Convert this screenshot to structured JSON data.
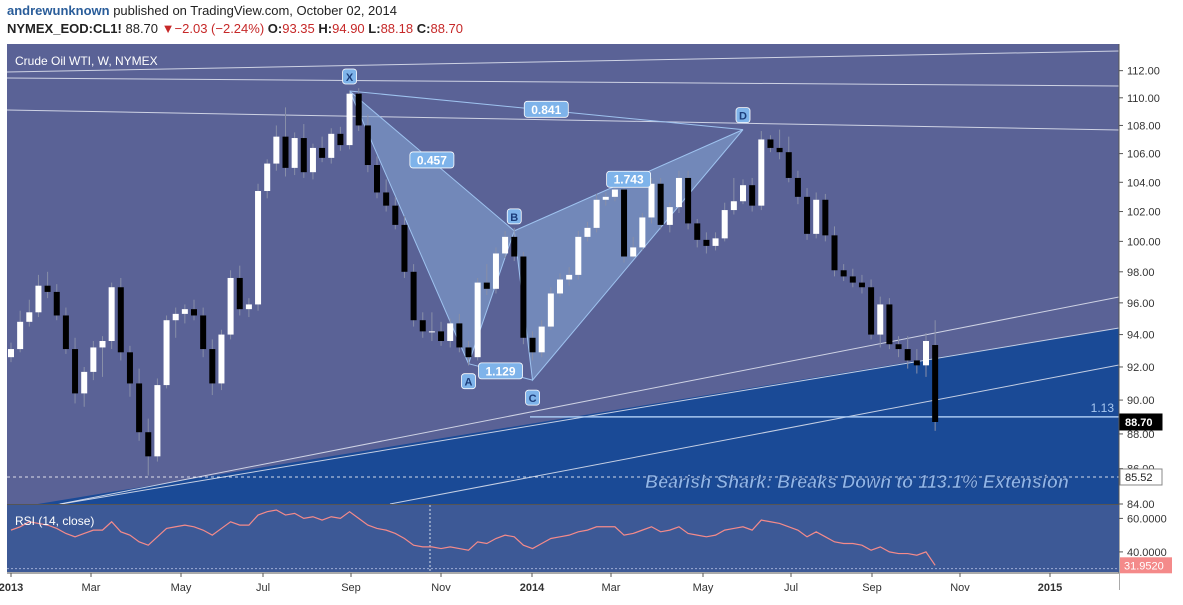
{
  "header": {
    "author": "andrewunknown",
    "published": "published on TradingView.com, October 02, 2014",
    "symbol": "NYMEX_EOD:CL1!",
    "last": "88.70",
    "change": "−2.03 (−2.24%)",
    "open_label": "O:",
    "open": "93.35",
    "high_label": "H:",
    "high": "94.90",
    "low_label": "L:",
    "low": "88.18",
    "close_label": "C:",
    "close": "88.70"
  },
  "chart_data": [
    {
      "type": "candlestick",
      "title": "Crude Oil WTI, W, NYMEX",
      "colors": {
        "background": "#5a6296",
        "up_candle": "#ffffff",
        "down_candle": "#000000",
        "channel_fill": "#1a4a96",
        "pattern_fill": "#7f9ccd",
        "pattern_line": "#9ec2ef",
        "trendline": "#e3e6f2"
      },
      "y_scale": "log",
      "y_range": [
        84.0,
        114.0
      ],
      "y_ticks": [
        "84.00",
        "86.00",
        "88.00",
        "90.00",
        "92.00",
        "94.00",
        "96.00",
        "98.00",
        "100.00",
        "102.00",
        "104.00",
        "106.00",
        "108.00",
        "110.00",
        "112.00"
      ],
      "x_ticks": [
        "2013",
        "Mar",
        "May",
        "Jul",
        "Sep",
        "Nov",
        "2014",
        "Mar",
        "May",
        "Jul",
        "Sep",
        "Nov",
        "2015"
      ],
      "price_labels": [
        {
          "value": 88.7,
          "text": "88.70",
          "style": "last"
        },
        {
          "value": 85.52,
          "text": "85.52",
          "style": "level"
        }
      ],
      "horizontal_line": {
        "value": 89.0,
        "label": "1.13"
      },
      "harmonic_pattern": {
        "name": "Bearish Shark",
        "points": [
          {
            "label": "X",
            "week": 37,
            "price": 110.5
          },
          {
            "label": "A",
            "week": 50,
            "price": 92.2
          },
          {
            "label": "B",
            "week": 55,
            "price": 100.7
          },
          {
            "label": "C",
            "week": 57,
            "price": 91.2
          },
          {
            "label": "D",
            "week": 80,
            "price": 107.7
          }
        ],
        "ratios": [
          "0.457",
          "0.841",
          "1.743",
          "1.129"
        ]
      },
      "annotation": "Bearish Shark: Breaks Down to 113.1% Extension",
      "candles": [
        {
          "o": 92.6,
          "h": 93.5,
          "l": 92.3,
          "c": 93.1
        },
        {
          "o": 93.1,
          "h": 95.5,
          "l": 92.9,
          "c": 94.8
        },
        {
          "o": 94.8,
          "h": 96.2,
          "l": 94.5,
          "c": 95.4
        },
        {
          "o": 95.4,
          "h": 97.8,
          "l": 95.1,
          "c": 97.1
        },
        {
          "o": 97.1,
          "h": 98.0,
          "l": 96.3,
          "c": 96.7
        },
        {
          "o": 96.7,
          "h": 97.2,
          "l": 94.9,
          "c": 95.2
        },
        {
          "o": 95.2,
          "h": 95.7,
          "l": 92.8,
          "c": 93.1
        },
        {
          "o": 93.1,
          "h": 93.8,
          "l": 89.8,
          "c": 90.4
        },
        {
          "o": 90.4,
          "h": 92.0,
          "l": 89.6,
          "c": 91.7
        },
        {
          "o": 91.7,
          "h": 93.6,
          "l": 91.2,
          "c": 93.2
        },
        {
          "o": 93.2,
          "h": 93.9,
          "l": 91.4,
          "c": 93.6
        },
        {
          "o": 93.6,
          "h": 97.3,
          "l": 93.1,
          "c": 97.0
        },
        {
          "o": 97.0,
          "h": 97.6,
          "l": 92.4,
          "c": 92.9
        },
        {
          "o": 92.9,
          "h": 93.3,
          "l": 90.2,
          "c": 91.0
        },
        {
          "o": 91.0,
          "h": 91.9,
          "l": 87.6,
          "c": 88.1
        },
        {
          "o": 88.1,
          "h": 88.9,
          "l": 85.6,
          "c": 86.7
        },
        {
          "o": 86.7,
          "h": 91.3,
          "l": 86.4,
          "c": 90.9
        },
        {
          "o": 90.9,
          "h": 95.2,
          "l": 90.7,
          "c": 94.9
        },
        {
          "o": 94.9,
          "h": 95.7,
          "l": 93.8,
          "c": 95.3
        },
        {
          "o": 95.3,
          "h": 95.9,
          "l": 94.7,
          "c": 95.6
        },
        {
          "o": 95.6,
          "h": 96.2,
          "l": 94.9,
          "c": 95.2
        },
        {
          "o": 95.2,
          "h": 95.7,
          "l": 92.6,
          "c": 93.1
        },
        {
          "o": 93.1,
          "h": 93.7,
          "l": 90.3,
          "c": 91.0
        },
        {
          "o": 91.0,
          "h": 94.3,
          "l": 90.6,
          "c": 94.0
        },
        {
          "o": 94.0,
          "h": 98.1,
          "l": 93.7,
          "c": 97.6
        },
        {
          "o": 97.6,
          "h": 98.4,
          "l": 95.2,
          "c": 95.6
        },
        {
          "o": 95.6,
          "h": 96.3,
          "l": 95.1,
          "c": 95.9
        },
        {
          "o": 95.9,
          "h": 103.9,
          "l": 95.5,
          "c": 103.4
        },
        {
          "o": 103.4,
          "h": 105.6,
          "l": 102.9,
          "c": 105.3
        },
        {
          "o": 105.3,
          "h": 108.0,
          "l": 104.8,
          "c": 107.2
        },
        {
          "o": 107.2,
          "h": 109.3,
          "l": 104.4,
          "c": 105.0
        },
        {
          "o": 105.0,
          "h": 107.5,
          "l": 104.5,
          "c": 107.1
        },
        {
          "o": 107.1,
          "h": 108.1,
          "l": 104.3,
          "c": 104.7
        },
        {
          "o": 104.7,
          "h": 106.7,
          "l": 104.2,
          "c": 106.4
        },
        {
          "o": 106.4,
          "h": 107.2,
          "l": 105.4,
          "c": 105.7
        },
        {
          "o": 105.7,
          "h": 107.8,
          "l": 105.3,
          "c": 107.4
        },
        {
          "o": 107.4,
          "h": 107.9,
          "l": 106.2,
          "c": 106.6
        },
        {
          "o": 106.6,
          "h": 110.5,
          "l": 106.3,
          "c": 110.3
        },
        {
          "o": 110.3,
          "h": 110.7,
          "l": 107.6,
          "c": 108.0
        },
        {
          "o": 108.0,
          "h": 108.8,
          "l": 104.7,
          "c": 105.2
        },
        {
          "o": 105.2,
          "h": 105.8,
          "l": 102.9,
          "c": 103.3
        },
        {
          "o": 103.3,
          "h": 104.2,
          "l": 102.0,
          "c": 102.4
        },
        {
          "o": 102.4,
          "h": 103.0,
          "l": 100.8,
          "c": 101.1
        },
        {
          "o": 101.1,
          "h": 101.7,
          "l": 97.6,
          "c": 98.0
        },
        {
          "o": 98.0,
          "h": 98.5,
          "l": 94.5,
          "c": 94.9
        },
        {
          "o": 94.9,
          "h": 95.4,
          "l": 93.8,
          "c": 94.2
        },
        {
          "o": 94.2,
          "h": 95.4,
          "l": 93.6,
          "c": 94.2
        },
        {
          "o": 94.2,
          "h": 94.8,
          "l": 93.3,
          "c": 93.6
        },
        {
          "o": 93.6,
          "h": 95.0,
          "l": 93.2,
          "c": 94.7
        },
        {
          "o": 94.7,
          "h": 95.3,
          "l": 92.9,
          "c": 93.2
        },
        {
          "o": 93.2,
          "h": 93.6,
          "l": 92.1,
          "c": 92.6
        },
        {
          "o": 92.6,
          "h": 97.6,
          "l": 92.4,
          "c": 97.3
        },
        {
          "o": 97.3,
          "h": 98.5,
          "l": 96.5,
          "c": 96.9
        },
        {
          "o": 96.9,
          "h": 99.6,
          "l": 96.6,
          "c": 99.2
        },
        {
          "o": 99.2,
          "h": 100.7,
          "l": 98.9,
          "c": 100.3
        },
        {
          "o": 100.3,
          "h": 100.9,
          "l": 98.7,
          "c": 99.0
        },
        {
          "o": 99.0,
          "h": 99.3,
          "l": 93.4,
          "c": 93.8
        },
        {
          "o": 93.8,
          "h": 94.2,
          "l": 92.4,
          "c": 92.9
        },
        {
          "o": 92.9,
          "h": 94.9,
          "l": 92.6,
          "c": 94.5
        },
        {
          "o": 94.5,
          "h": 97.0,
          "l": 94.3,
          "c": 96.6
        },
        {
          "o": 96.6,
          "h": 97.9,
          "l": 96.4,
          "c": 97.5
        },
        {
          "o": 97.5,
          "h": 98.3,
          "l": 97.1,
          "c": 97.8
        },
        {
          "o": 97.8,
          "h": 100.7,
          "l": 97.5,
          "c": 100.3
        },
        {
          "o": 100.3,
          "h": 101.3,
          "l": 100.0,
          "c": 100.9
        },
        {
          "o": 100.9,
          "h": 103.2,
          "l": 100.6,
          "c": 102.8
        },
        {
          "o": 102.8,
          "h": 103.3,
          "l": 102.4,
          "c": 103.0
        },
        {
          "o": 103.0,
          "h": 104.2,
          "l": 102.7,
          "c": 103.5
        },
        {
          "o": 103.5,
          "h": 104.2,
          "l": 98.6,
          "c": 99.0
        },
        {
          "o": 99.0,
          "h": 100.3,
          "l": 98.9,
          "c": 99.6
        },
        {
          "o": 99.6,
          "h": 101.9,
          "l": 99.4,
          "c": 101.6
        },
        {
          "o": 101.6,
          "h": 104.3,
          "l": 101.2,
          "c": 103.9
        },
        {
          "o": 103.9,
          "h": 104.3,
          "l": 100.8,
          "c": 101.1
        },
        {
          "o": 101.1,
          "h": 102.6,
          "l": 100.6,
          "c": 102.3
        },
        {
          "o": 102.3,
          "h": 104.8,
          "l": 101.9,
          "c": 104.3
        },
        {
          "o": 104.3,
          "h": 104.8,
          "l": 100.8,
          "c": 101.2
        },
        {
          "o": 101.2,
          "h": 101.5,
          "l": 99.6,
          "c": 100.1
        },
        {
          "o": 100.1,
          "h": 100.6,
          "l": 99.2,
          "c": 99.7
        },
        {
          "o": 99.7,
          "h": 100.6,
          "l": 99.4,
          "c": 100.2
        },
        {
          "o": 100.2,
          "h": 102.6,
          "l": 100.0,
          "c": 102.1
        },
        {
          "o": 102.1,
          "h": 104.3,
          "l": 101.8,
          "c": 102.7
        },
        {
          "o": 102.7,
          "h": 104.2,
          "l": 102.5,
          "c": 103.8
        },
        {
          "o": 103.8,
          "h": 104.3,
          "l": 102.0,
          "c": 102.4
        },
        {
          "o": 102.4,
          "h": 107.6,
          "l": 102.1,
          "c": 107.0
        },
        {
          "o": 107.0,
          "h": 107.3,
          "l": 106.1,
          "c": 106.4
        },
        {
          "o": 106.4,
          "h": 107.7,
          "l": 105.6,
          "c": 106.1
        },
        {
          "o": 106.1,
          "h": 107.2,
          "l": 104.0,
          "c": 104.3
        },
        {
          "o": 104.3,
          "h": 104.8,
          "l": 102.5,
          "c": 103.0
        },
        {
          "o": 103.0,
          "h": 103.6,
          "l": 100.1,
          "c": 100.5
        },
        {
          "o": 100.5,
          "h": 103.3,
          "l": 100.2,
          "c": 102.8
        },
        {
          "o": 102.8,
          "h": 103.2,
          "l": 100.0,
          "c": 100.4
        },
        {
          "o": 100.4,
          "h": 101.0,
          "l": 97.7,
          "c": 98.1
        },
        {
          "o": 98.1,
          "h": 98.5,
          "l": 97.4,
          "c": 97.7
        },
        {
          "o": 97.7,
          "h": 98.2,
          "l": 97.0,
          "c": 97.3
        },
        {
          "o": 97.3,
          "h": 97.8,
          "l": 96.6,
          "c": 97.0
        },
        {
          "o": 97.0,
          "h": 97.5,
          "l": 93.7,
          "c": 94.0
        },
        {
          "o": 94.0,
          "h": 96.4,
          "l": 93.2,
          "c": 95.9
        },
        {
          "o": 95.9,
          "h": 96.3,
          "l": 93.1,
          "c": 93.4
        },
        {
          "o": 93.4,
          "h": 93.9,
          "l": 92.6,
          "c": 93.1
        },
        {
          "o": 93.1,
          "h": 93.9,
          "l": 91.9,
          "c": 92.4
        },
        {
          "o": 92.4,
          "h": 93.1,
          "l": 91.6,
          "c": 92.1
        },
        {
          "o": 92.1,
          "h": 94.1,
          "l": 91.4,
          "c": 93.6
        },
        {
          "o": 93.35,
          "h": 94.9,
          "l": 88.18,
          "c": 88.7
        }
      ]
    },
    {
      "type": "line",
      "title": "RSI (14, close)",
      "series_color": "#f48a8a",
      "y_range": [
        28,
        68
      ],
      "y_ticks": [
        "40.0000",
        "60.0000"
      ],
      "last_value": "31.9520",
      "values": [
        53,
        55,
        58,
        57,
        56,
        54,
        51,
        49,
        51,
        53,
        53,
        58,
        52,
        50,
        46,
        44,
        49,
        54,
        55,
        56,
        55,
        53,
        50,
        54,
        58,
        56,
        56,
        62,
        64,
        65,
        62,
        63,
        60,
        61,
        59,
        61,
        60,
        64,
        60,
        56,
        54,
        53,
        51,
        48,
        44,
        43,
        43,
        42,
        43,
        42,
        41,
        46,
        45,
        48,
        50,
        49,
        44,
        42,
        45,
        48,
        49,
        50,
        52,
        53,
        55,
        55,
        55,
        50,
        51,
        53,
        55,
        52,
        53,
        55,
        51,
        50,
        49,
        50,
        53,
        54,
        55,
        53,
        59,
        58,
        57,
        55,
        53,
        49,
        52,
        49,
        46,
        45,
        45,
        44,
        41,
        43,
        40,
        39,
        39,
        38,
        40,
        32
      ]
    }
  ]
}
